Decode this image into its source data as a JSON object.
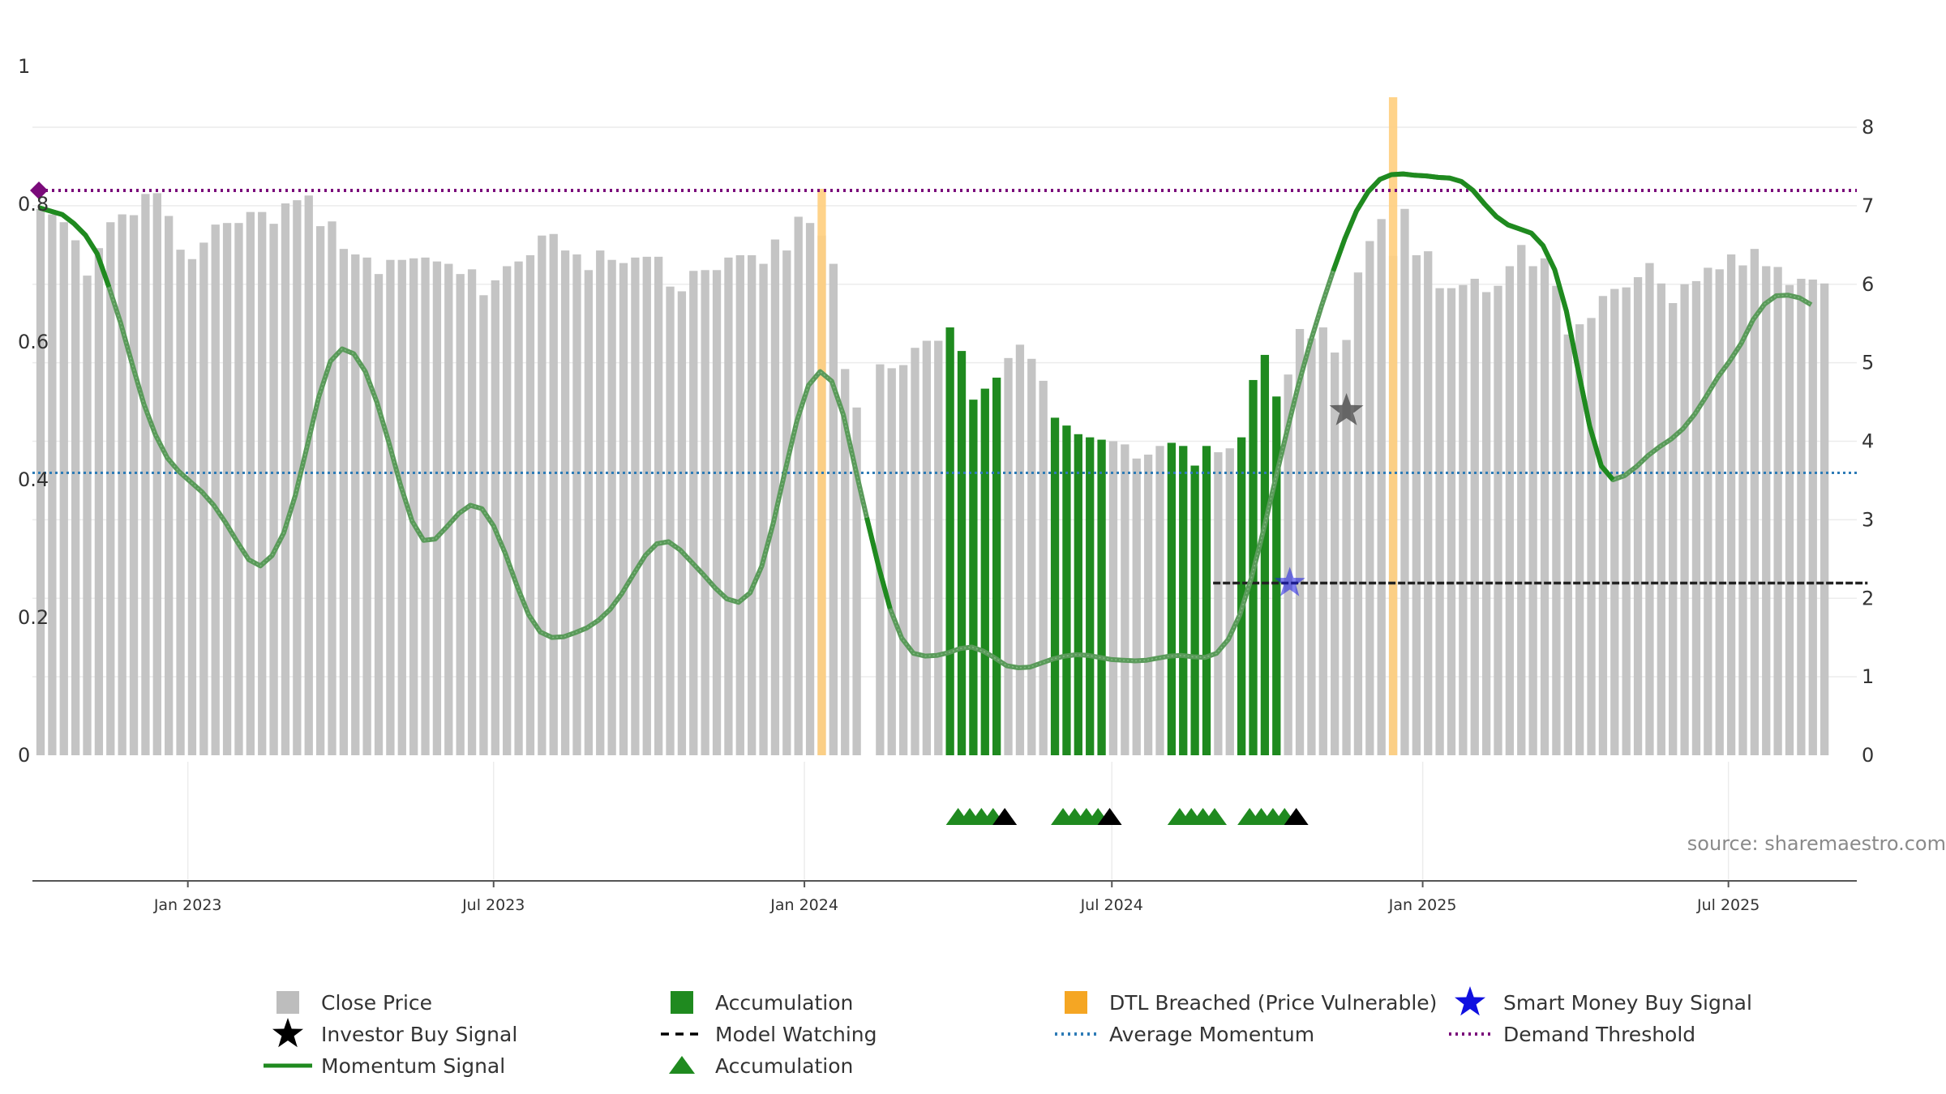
{
  "chart_data": {
    "type": "bar",
    "title": "",
    "source": "source: sharemaestro.com",
    "x_range": [
      "2022-10-01",
      "2025-09-15"
    ],
    "x_ticks": [
      "Jan 2023",
      "Jul 2023",
      "Jan 2024",
      "Jul 2024",
      "Jan 2025",
      "Jul 2025"
    ],
    "y_left": {
      "range": [
        0,
        1
      ],
      "ticks": [
        "0",
        "0.2",
        "0.4",
        "0.6",
        "0.8",
        "1"
      ]
    },
    "y_right": {
      "range": [
        0,
        8.7
      ],
      "ticks": [
        "0",
        "1",
        "2",
        "3",
        "4",
        "5",
        "6",
        "7",
        "8"
      ]
    },
    "close_price": [
      6.96,
      6.89,
      6.79,
      6.56,
      6.11,
      6.46,
      6.79,
      6.89,
      6.88,
      7.15,
      7.16,
      6.87,
      6.44,
      6.32,
      6.53,
      6.76,
      6.78,
      6.78,
      6.92,
      6.92,
      6.77,
      7.03,
      7.07,
      7.13,
      6.74,
      6.8,
      6.45,
      6.38,
      6.34,
      6.13,
      6.31,
      6.31,
      6.33,
      6.34,
      6.29,
      6.26,
      6.13,
      6.19,
      5.86,
      6.05,
      6.23,
      6.29,
      6.37,
      6.62,
      6.64,
      6.43,
      6.38,
      6.18,
      6.43,
      6.31,
      6.27,
      6.34,
      6.35,
      6.35,
      5.97,
      5.91,
      6.17,
      6.18,
      6.18,
      6.34,
      6.37,
      6.37,
      6.26,
      6.57,
      6.43,
      6.86,
      6.78,
      6.62,
      6.26,
      4.92,
      4.43,
      0.0,
      4.98,
      4.93,
      4.97,
      5.19,
      5.28,
      5.28,
      5.45,
      5.15,
      4.53,
      4.67,
      4.81,
      5.06,
      5.23,
      5.05,
      4.77,
      4.3,
      4.2,
      4.09,
      4.05,
      4.02,
      4.0,
      3.96,
      3.78,
      3.83,
      3.94,
      3.98,
      3.94,
      3.69,
      3.94,
      3.86,
      3.91,
      4.05,
      4.78,
      5.1,
      4.57,
      4.85,
      5.43,
      5.31,
      5.45,
      5.13,
      5.29,
      6.15,
      6.55,
      6.83,
      6.36,
      6.96,
      6.37,
      6.42,
      5.95,
      5.95,
      5.99,
      6.07,
      5.9,
      5.98,
      6.23,
      6.5,
      6.23,
      6.33,
      5.98,
      5.36,
      5.49,
      5.57,
      5.85,
      5.94,
      5.96,
      6.09,
      6.27,
      6.01,
      5.76,
      6.0,
      6.04,
      6.21,
      6.19,
      6.38,
      6.24,
      6.45,
      6.23,
      6.22,
      5.99,
      6.07,
      6.06,
      6.01
    ],
    "accumulation_bar_indices": [
      78,
      79,
      80,
      81,
      82,
      87,
      88,
      89,
      90,
      91,
      97,
      98,
      99,
      100,
      103,
      104,
      105,
      106
    ],
    "dtl_breach_indices": [
      67,
      116
    ],
    "momentum_signal": [
      0.795,
      0.79,
      0.785,
      0.772,
      0.755,
      0.728,
      0.68,
      0.628,
      0.568,
      0.51,
      0.465,
      0.432,
      0.412,
      0.397,
      0.382,
      0.363,
      0.338,
      0.31,
      0.284,
      0.275,
      0.29,
      0.323,
      0.378,
      0.448,
      0.52,
      0.572,
      0.59,
      0.583,
      0.557,
      0.512,
      0.455,
      0.393,
      0.34,
      0.312,
      0.314,
      0.332,
      0.351,
      0.363,
      0.358,
      0.333,
      0.293,
      0.246,
      0.204,
      0.179,
      0.171,
      0.172,
      0.178,
      0.185,
      0.196,
      0.212,
      0.235,
      0.263,
      0.29,
      0.307,
      0.31,
      0.298,
      0.28,
      0.262,
      0.243,
      0.227,
      0.222,
      0.236,
      0.275,
      0.338,
      0.413,
      0.485,
      0.537,
      0.557,
      0.543,
      0.494,
      0.418,
      0.345,
      0.275,
      0.213,
      0.17,
      0.148,
      0.144,
      0.145,
      0.149,
      0.155,
      0.157,
      0.151,
      0.141,
      0.13,
      0.127,
      0.128,
      0.134,
      0.14,
      0.144,
      0.146,
      0.145,
      0.142,
      0.139,
      0.138,
      0.137,
      0.138,
      0.141,
      0.144,
      0.145,
      0.143,
      0.142,
      0.148,
      0.168,
      0.204,
      0.258,
      0.325,
      0.397,
      0.468,
      0.536,
      0.597,
      0.652,
      0.703,
      0.75,
      0.79,
      0.818,
      0.836,
      0.843,
      0.844,
      0.842,
      0.841,
      0.839,
      0.838,
      0.833,
      0.82,
      0.8,
      0.782,
      0.77,
      0.764,
      0.758,
      0.74,
      0.705,
      0.645,
      0.56,
      0.478,
      0.42,
      0.4,
      0.406,
      0.419,
      0.435,
      0.448,
      0.459,
      0.474,
      0.495,
      0.521,
      0.549,
      0.572,
      0.598,
      0.632,
      0.655,
      0.667,
      0.668,
      0.664,
      0.654
    ],
    "momentum_highlight_ranges": [
      [
        0,
        6
      ],
      [
        71,
        73
      ],
      [
        111,
        135
      ]
    ],
    "average_momentum": 0.41,
    "demand_threshold": 0.82,
    "model_watching": {
      "start_index": 103,
      "end_index": 156,
      "value": 0.25
    },
    "investor_buy_signal": {
      "index": 112,
      "value": 0.5
    },
    "smart_money_buy_signal": {
      "index": 107,
      "value": 0.25
    },
    "accumulation_markers": [
      {
        "index": 78,
        "color": "green"
      },
      {
        "index": 79,
        "color": "green"
      },
      {
        "index": 80,
        "color": "green"
      },
      {
        "index": 81,
        "color": "green"
      },
      {
        "index": 82,
        "color": "black"
      },
      {
        "index": 87,
        "color": "green"
      },
      {
        "index": 88,
        "color": "green"
      },
      {
        "index": 89,
        "color": "green"
      },
      {
        "index": 90,
        "color": "green"
      },
      {
        "index": 91,
        "color": "black"
      },
      {
        "index": 97,
        "color": "green"
      },
      {
        "index": 98,
        "color": "green"
      },
      {
        "index": 99,
        "color": "green"
      },
      {
        "index": 100,
        "color": "green"
      },
      {
        "index": 103,
        "color": "green"
      },
      {
        "index": 104,
        "color": "green"
      },
      {
        "index": 105,
        "color": "green"
      },
      {
        "index": 106,
        "color": "green"
      },
      {
        "index": 107,
        "color": "black"
      }
    ],
    "colors": {
      "close_price": "#c4c4c4",
      "accumulation": "#1f8a1f",
      "dtl": "#ffcf80",
      "momentum": "#1f8a1f",
      "momentum_light": "#5a9a5a",
      "average_momentum": "#2d7bb6",
      "demand_threshold": "#7a0a7a",
      "model_watching": "#222222",
      "investor_star": "#555555",
      "smart_star": "#1a1ae6",
      "marker_black": "#000000"
    },
    "legend": [
      {
        "label": "Close Price",
        "symbol": "square",
        "color": "#bdbdbd"
      },
      {
        "label": "Accumulation",
        "symbol": "square",
        "color": "#1f8a1f"
      },
      {
        "label": "DTL Breached (Price Vulnerable)",
        "symbol": "square",
        "color": "#f5a623"
      },
      {
        "label": "Smart Money Buy Signal",
        "symbol": "star",
        "color": "#1010e0"
      },
      {
        "label": "Investor Buy Signal",
        "symbol": "star",
        "color": "#000000"
      },
      {
        "label": "Model Watching",
        "symbol": "dash",
        "color": "#000000"
      },
      {
        "label": "Average Momentum",
        "symbol": "dotted",
        "color": "#2d7bb6"
      },
      {
        "label": "Demand Threshold",
        "symbol": "dotted",
        "color": "#7a0a7a"
      },
      {
        "label": "Momentum Signal",
        "symbol": "line",
        "color": "#1f8a1f"
      },
      {
        "label": "Accumulation",
        "symbol": "triangle",
        "color": "#1f8a1f"
      }
    ]
  }
}
